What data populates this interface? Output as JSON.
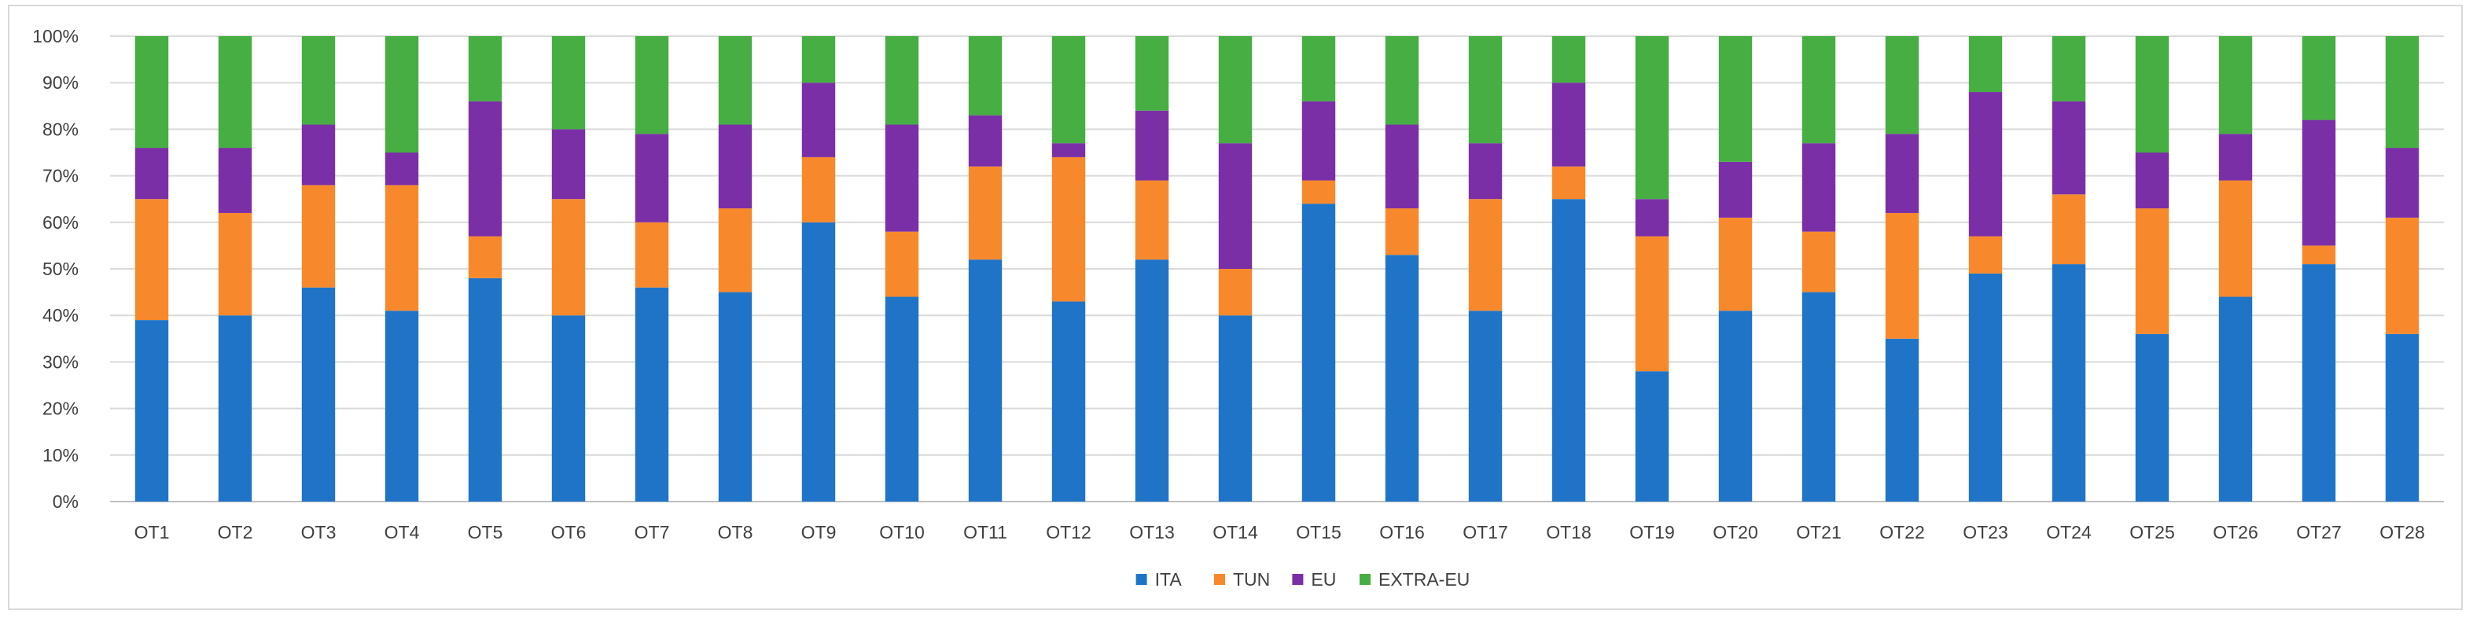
{
  "chart_data": {
    "type": "bar",
    "stacked": true,
    "percent": true,
    "title": "",
    "xlabel": "",
    "ylabel": "",
    "ylim": [
      0,
      100
    ],
    "yticks": [
      "0%",
      "10%",
      "20%",
      "30%",
      "40%",
      "50%",
      "60%",
      "70%",
      "80%",
      "90%",
      "100%"
    ],
    "grid": true,
    "legend_position": "bottom",
    "categories": [
      "OT1",
      "OT2",
      "OT3",
      "OT4",
      "OT5",
      "OT6",
      "OT7",
      "OT8",
      "OT9",
      "OT10",
      "OT11",
      "OT12",
      "OT13",
      "OT14",
      "OT15",
      "OT16",
      "OT17",
      "OT18",
      "OT19",
      "OT20",
      "OT21",
      "OT22",
      "OT23",
      "OT24",
      "OT25",
      "OT26",
      "OT27",
      "OT28"
    ],
    "series": [
      {
        "name": "ITA",
        "color": "#1f74c8",
        "values": [
          39,
          40,
          46,
          41,
          48,
          40,
          46,
          45,
          60,
          44,
          52,
          43,
          52,
          40,
          64,
          53,
          41,
          65,
          28,
          41,
          45,
          35,
          49,
          51,
          36,
          44,
          51,
          36
        ]
      },
      {
        "name": "TUN",
        "color": "#f7892c",
        "values": [
          26,
          22,
          22,
          27,
          9,
          25,
          14,
          18,
          14,
          14,
          20,
          31,
          17,
          10,
          5,
          10,
          24,
          7,
          29,
          20,
          13,
          27,
          8,
          15,
          27,
          25,
          4,
          25
        ]
      },
      {
        "name": "EU",
        "color": "#7b2fa7",
        "values": [
          11,
          14,
          13,
          7,
          29,
          15,
          19,
          18,
          16,
          23,
          11,
          3,
          15,
          27,
          17,
          18,
          12,
          18,
          8,
          12,
          19,
          17,
          31,
          20,
          12,
          10,
          27,
          15
        ]
      },
      {
        "name": "EXTRA-EU",
        "color": "#46ae42",
        "values": [
          24,
          24,
          19,
          25,
          14,
          20,
          21,
          19,
          10,
          19,
          17,
          23,
          16,
          23,
          14,
          19,
          23,
          10,
          35,
          27,
          23,
          21,
          12,
          14,
          25,
          21,
          18,
          24
        ]
      }
    ]
  }
}
